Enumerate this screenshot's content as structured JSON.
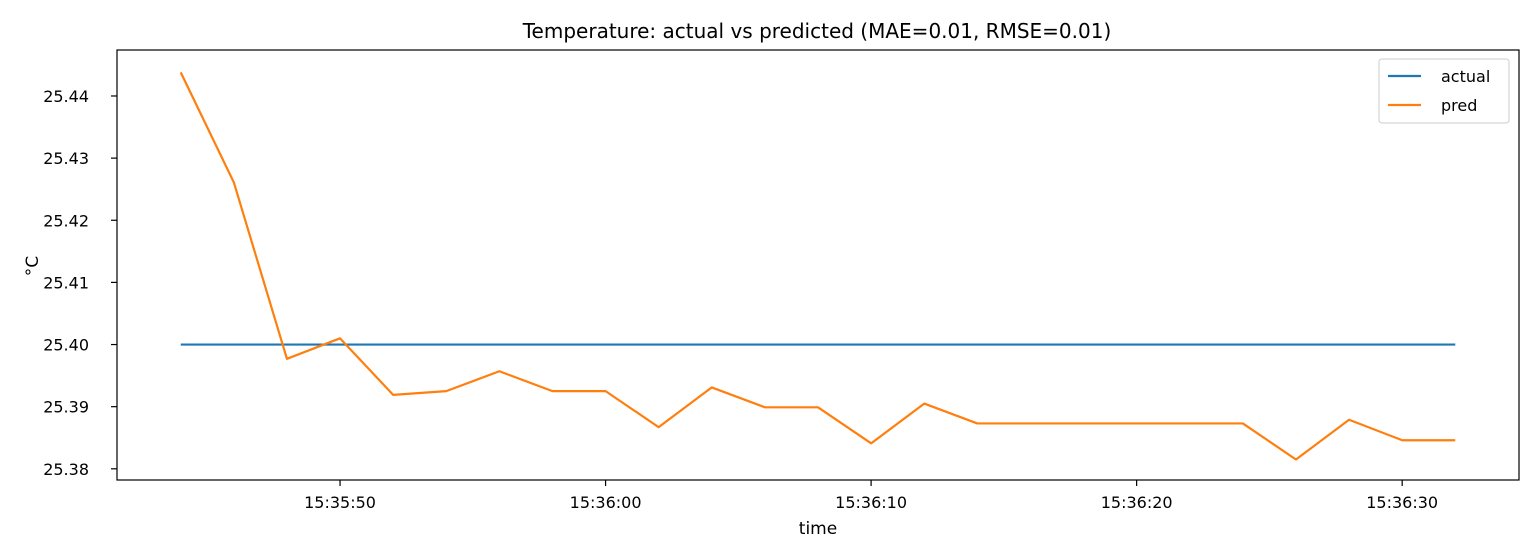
{
  "chart_data": {
    "type": "line",
    "title": "Temperature: actual vs predicted (MAE=0.01, RMSE=0.01)",
    "xlabel": "time",
    "ylabel": "°C",
    "x": [
      "15:35:44",
      "15:35:46",
      "15:35:48",
      "15:35:50",
      "15:35:52",
      "15:35:54",
      "15:35:56",
      "15:35:58",
      "15:36:00",
      "15:36:02",
      "15:36:04",
      "15:36:06",
      "15:36:08",
      "15:36:10",
      "15:36:12",
      "15:36:14",
      "15:36:16",
      "15:36:18",
      "15:36:20",
      "15:36:22",
      "15:36:24",
      "15:36:26",
      "15:36:28",
      "15:36:30",
      "15:36:32"
    ],
    "xlim": [
      "15:35:41.6",
      "15:36:34.4"
    ],
    "xticks": [
      "15:35:50",
      "15:36:00",
      "15:36:10",
      "15:36:20",
      "15:36:30"
    ],
    "ylim": [
      25.3782,
      25.4474
    ],
    "yticks": [
      "25.38",
      "25.39",
      "25.40",
      "25.41",
      "25.42",
      "25.43",
      "25.44"
    ],
    "grid": false,
    "legend_position": "top-right",
    "series": [
      {
        "name": "actual",
        "color": "#1f77b4",
        "values": [
          25.4,
          25.4,
          25.4,
          25.4,
          25.4,
          25.4,
          25.4,
          25.4,
          25.4,
          25.4,
          25.4,
          25.4,
          25.4,
          25.4,
          25.4,
          25.4,
          25.4,
          25.4,
          25.4,
          25.4,
          25.4,
          25.4,
          25.4,
          25.4,
          25.4
        ]
      },
      {
        "name": "pred",
        "color": "#ff7f0e",
        "values": [
          25.4438,
          25.4261,
          25.3977,
          25.401,
          25.3919,
          25.3925,
          25.3957,
          25.3925,
          25.3925,
          25.3867,
          25.3931,
          25.3899,
          25.3899,
          25.3841,
          25.3905,
          25.3873,
          25.3873,
          25.3873,
          25.3873,
          25.3873,
          25.3873,
          25.3815,
          25.3879,
          25.3846,
          25.3846
        ]
      }
    ]
  }
}
